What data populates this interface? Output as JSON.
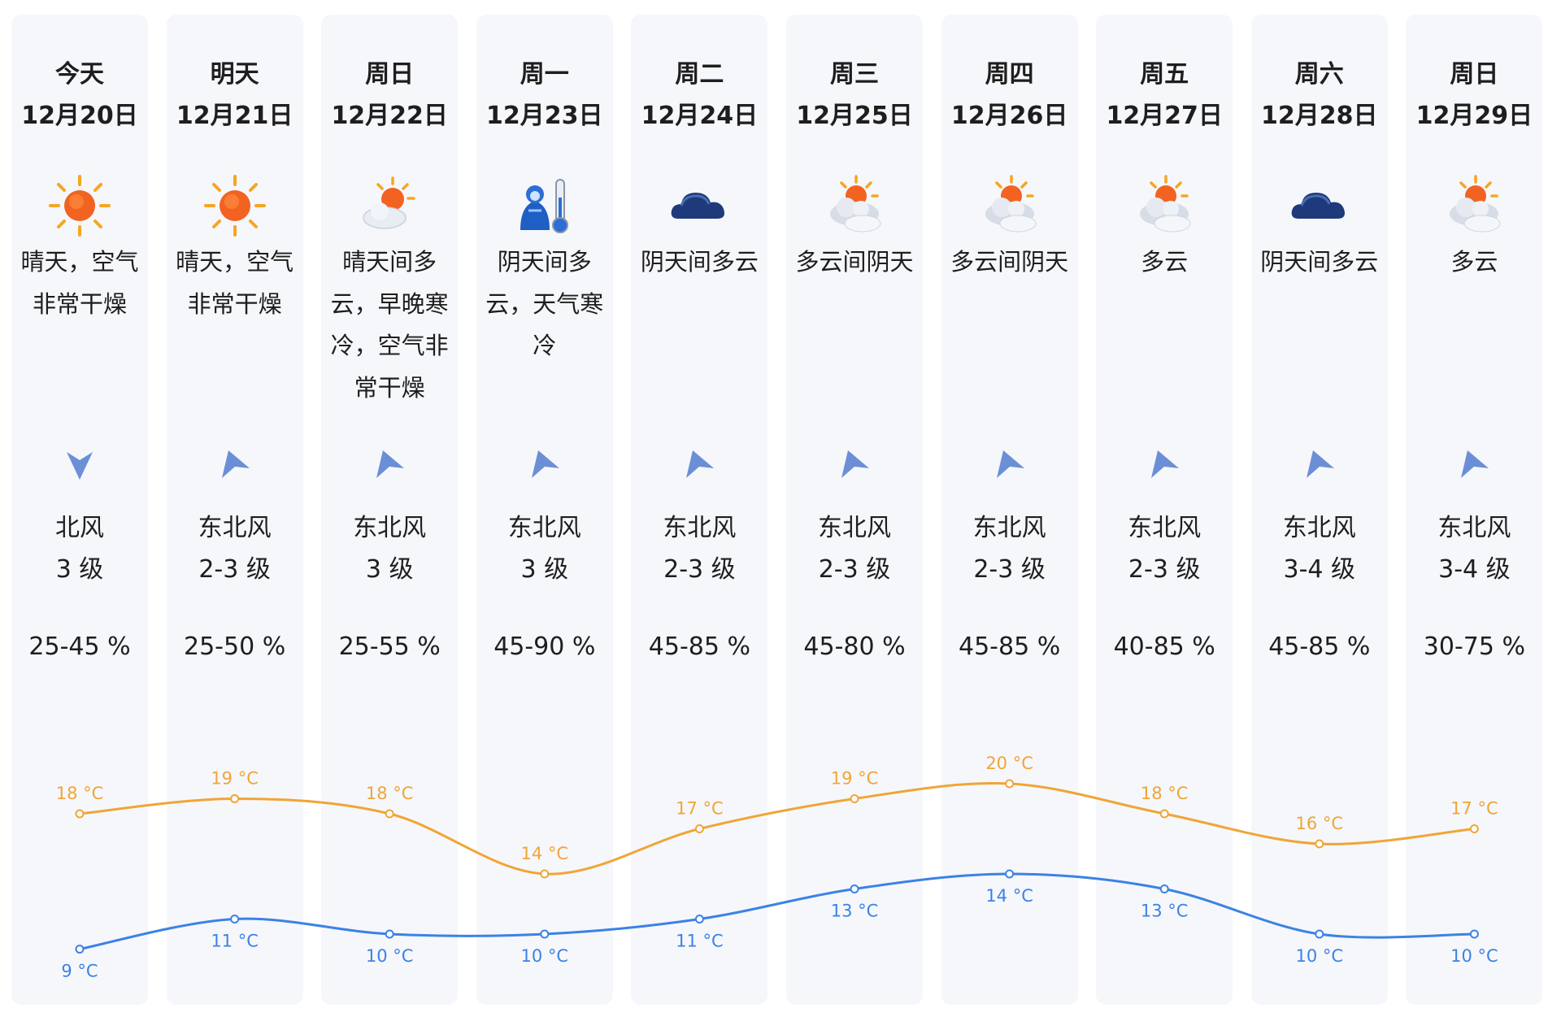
{
  "days": [
    {
      "weekday": "今天",
      "date": "12月20日",
      "icon": "sunny-icon",
      "desc": "晴天，空气\n非常干燥",
      "wind_arrow": "north-wind-arrow-icon",
      "wind_dir": "北风",
      "wind_level": "3 级",
      "humidity": "25-45 %"
    },
    {
      "weekday": "明天",
      "date": "12月21日",
      "icon": "sunny-icon",
      "desc": "晴天，空气\n非常干燥",
      "wind_arrow": "northeast-wind-arrow-icon",
      "wind_dir": "东北风",
      "wind_level": "2-3 级",
      "humidity": "25-50 %"
    },
    {
      "weekday": "周日",
      "date": "12月22日",
      "icon": "sun-behind-cloud-icon",
      "desc": "晴天间多\n云，早晚寒\n冷，空气非\n常干燥",
      "wind_arrow": "northeast-wind-arrow-icon",
      "wind_dir": "东北风",
      "wind_level": "3 级",
      "humidity": "25-55 %"
    },
    {
      "weekday": "周一",
      "date": "12月23日",
      "icon": "cold-person-thermometer-icon",
      "desc": "阴天间多\n云，天气寒\n冷",
      "wind_arrow": "northeast-wind-arrow-icon",
      "wind_dir": "东北风",
      "wind_level": "3 级",
      "humidity": "45-90 %"
    },
    {
      "weekday": "周二",
      "date": "12月24日",
      "icon": "dark-cloud-icon",
      "desc": "阴天间多云",
      "wind_arrow": "northeast-wind-arrow-icon",
      "wind_dir": "东北风",
      "wind_level": "2-3 级",
      "humidity": "45-85 %"
    },
    {
      "weekday": "周三",
      "date": "12月25日",
      "icon": "partly-cloudy-icon",
      "desc": "多云间阴天",
      "wind_arrow": "northeast-wind-arrow-icon",
      "wind_dir": "东北风",
      "wind_level": "2-3 级",
      "humidity": "45-80 %"
    },
    {
      "weekday": "周四",
      "date": "12月26日",
      "icon": "partly-cloudy-icon",
      "desc": "多云间阴天",
      "wind_arrow": "northeast-wind-arrow-icon",
      "wind_dir": "东北风",
      "wind_level": "2-3 级",
      "humidity": "45-85 %"
    },
    {
      "weekday": "周五",
      "date": "12月27日",
      "icon": "partly-cloudy-icon",
      "desc": "多云",
      "wind_arrow": "northeast-wind-arrow-icon",
      "wind_dir": "东北风",
      "wind_level": "2-3 级",
      "humidity": "40-85 %"
    },
    {
      "weekday": "周六",
      "date": "12月28日",
      "icon": "dark-cloud-icon",
      "desc": "阴天间多云",
      "wind_arrow": "northeast-wind-arrow-icon",
      "wind_dir": "东北风",
      "wind_level": "3-4 级",
      "humidity": "45-85 %"
    },
    {
      "weekday": "周日",
      "date": "12月29日",
      "icon": "partly-cloudy-icon",
      "desc": "多云",
      "wind_arrow": "northeast-wind-arrow-icon",
      "wind_dir": "东北风",
      "wind_level": "3-4 级",
      "humidity": "30-75 %"
    }
  ],
  "chart_data": {
    "type": "line",
    "x": [
      "12月20日",
      "12月21日",
      "12月22日",
      "12月23日",
      "12月24日",
      "12月25日",
      "12月26日",
      "12月27日",
      "12月28日",
      "12月29日"
    ],
    "series": [
      {
        "key": "high",
        "values": [
          18,
          19,
          18,
          14,
          17,
          19,
          20,
          18,
          16,
          17
        ],
        "labels": [
          "18 °C",
          "19 °C",
          "18 °C",
          "14 °C",
          "17 °C",
          "19 °C",
          "20 °C",
          "18 °C",
          "16 °C",
          "17 °C"
        ],
        "color": "#f0a536"
      },
      {
        "key": "low",
        "values": [
          9,
          11,
          10,
          10,
          11,
          13,
          14,
          13,
          10,
          10
        ],
        "labels": [
          "9 °C",
          "11 °C",
          "10 °C",
          "10 °C",
          "11 °C",
          "13 °C",
          "14 °C",
          "13 °C",
          "10 °C",
          "10 °C"
        ],
        "color": "#3b82e6"
      }
    ],
    "grid": false,
    "legend": "none"
  },
  "colors": {
    "column_bg": "#f6f7fb",
    "high_line": "#f0a536",
    "low_line": "#3b82e6",
    "wind_arrow": "#6b8fd6"
  }
}
